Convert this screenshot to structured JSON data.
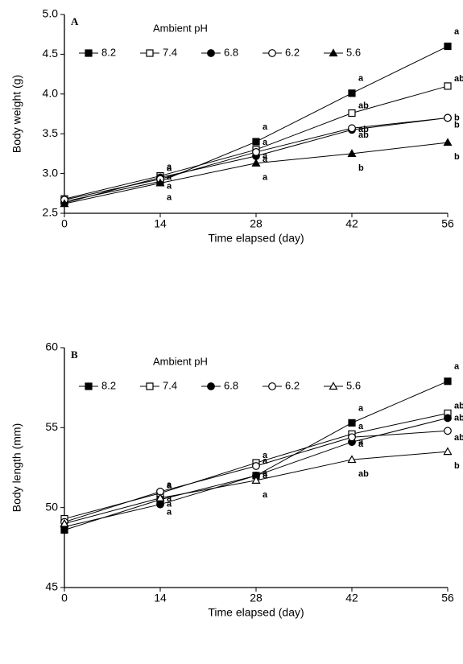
{
  "chart_data": [
    {
      "type": "line",
      "panel": "A",
      "legend_title": "Ambient pH",
      "xlabel": "Time elapsed (day)",
      "ylabel": "Body weight (g)",
      "x": [
        0,
        14,
        28,
        42,
        56
      ],
      "xlim": [
        0,
        56
      ],
      "xticks": [
        0,
        14,
        28,
        42,
        56
      ],
      "ylim": [
        2.5,
        5.0
      ],
      "yticks": [
        2.5,
        {
          "value": 3,
          "label": "3.0"
        },
        3.5,
        {
          "value": 4,
          "label": "4.0"
        },
        4.5,
        {
          "value": 5,
          "label": "5.0"
        }
      ],
      "series": [
        {
          "name": "8.2",
          "color": "#000",
          "marker": "square-filled",
          "values": [
            2.65,
            2.9,
            3.4,
            4.01,
            4.6
          ],
          "letters": [
            null,
            "a",
            "a",
            "a",
            "a"
          ]
        },
        {
          "name": "7.4",
          "color": "#000",
          "marker": "square-open",
          "values": [
            2.68,
            2.97,
            3.3,
            3.76,
            4.1
          ],
          "letters": [
            null,
            "a",
            "a",
            "ab",
            "ab"
          ]
        },
        {
          "name": "6.8",
          "color": "#000",
          "marker": "circle-filled",
          "values": [
            2.63,
            2.95,
            3.22,
            3.55,
            3.7
          ],
          "letters": [
            null,
            "a",
            "a",
            "ab",
            "b"
          ]
        },
        {
          "name": "6.2",
          "color": "#000",
          "marker": "circle-open",
          "values": [
            2.67,
            2.93,
            3.27,
            3.57,
            3.7
          ],
          "letters": [
            null,
            "a",
            "a",
            "ab",
            "b"
          ]
        },
        {
          "name": "5.6",
          "color": "#000",
          "marker": "triangle-filled",
          "values": [
            2.62,
            2.88,
            3.13,
            3.25,
            3.39
          ],
          "letters": [
            null,
            "a",
            "a",
            "b",
            "b"
          ]
        }
      ]
    },
    {
      "type": "line",
      "panel": "B",
      "legend_title": "Ambient pH",
      "xlabel": "Time elapsed (day)",
      "ylabel": "Body length (mm)",
      "x": [
        0,
        14,
        28,
        42,
        56
      ],
      "xlim": [
        0,
        56
      ],
      "xticks": [
        0,
        14,
        28,
        42,
        56
      ],
      "ylim": [
        45,
        60
      ],
      "yticks": [
        45,
        50,
        55,
        60
      ],
      "series": [
        {
          "name": "8.2",
          "color": "#000",
          "marker": "square-filled",
          "values": [
            48.6,
            50.5,
            52.0,
            55.3,
            57.9
          ],
          "letters": [
            null,
            "a",
            "a",
            "a",
            "a"
          ]
        },
        {
          "name": "7.4",
          "color": "#000",
          "marker": "square-open",
          "values": [
            49.3,
            50.9,
            52.8,
            54.6,
            55.9
          ],
          "letters": [
            null,
            "a",
            "a",
            "a",
            "ab"
          ]
        },
        {
          "name": "6.8",
          "color": "#000",
          "marker": "circle-filled",
          "values": [
            48.8,
            50.2,
            52.0,
            54.1,
            55.6
          ],
          "letters": [
            null,
            "a",
            "a",
            "a",
            "ab"
          ]
        },
        {
          "name": "6.2",
          "color": "#000",
          "marker": "circle-open",
          "values": [
            49.1,
            51.0,
            52.6,
            54.4,
            54.8
          ],
          "letters": [
            null,
            "a",
            "a",
            "a",
            "ab"
          ]
        },
        {
          "name": "5.6",
          "color": "#000",
          "marker": "triangle-open",
          "values": [
            49.0,
            50.6,
            51.7,
            53.0,
            53.5
          ],
          "letters": [
            null,
            "a",
            "a",
            "ab",
            "b"
          ]
        }
      ]
    }
  ]
}
